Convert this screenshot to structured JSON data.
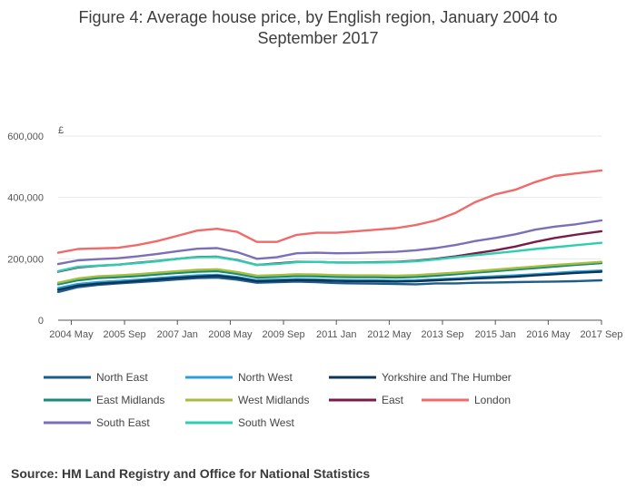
{
  "chart_data": {
    "type": "line",
    "title": "Figure 4: Average house price, by English region, January 2004 to September 2017",
    "ylabel": "£",
    "xlabel": "",
    "ylim": [
      0,
      600000
    ],
    "xlim": [
      2004.0,
      2017.67
    ],
    "grid": true,
    "legend_position": "bottom",
    "y_ticks": [
      {
        "value": 0,
        "label": "0"
      },
      {
        "value": 200000,
        "label": "200,000"
      },
      {
        "value": 400000,
        "label": "400,000"
      },
      {
        "value": 600000,
        "label": "600,000"
      }
    ],
    "x_ticks": [
      {
        "value": 2004.33,
        "label": "2004 May"
      },
      {
        "value": 2005.67,
        "label": "2005 Sep"
      },
      {
        "value": 2007.0,
        "label": "2007 Jan"
      },
      {
        "value": 2008.33,
        "label": "2008 May"
      },
      {
        "value": 2009.67,
        "label": "2009 Sep"
      },
      {
        "value": 2011.0,
        "label": "2011 Jan"
      },
      {
        "value": 2012.33,
        "label": "2012 May"
      },
      {
        "value": 2013.67,
        "label": "2013 Sep"
      },
      {
        "value": 2015.0,
        "label": "2015 Jan"
      },
      {
        "value": 2016.33,
        "label": "2016 May"
      },
      {
        "value": 2017.67,
        "label": "2017 Sep"
      }
    ],
    "x": [
      2004.0,
      2004.5,
      2005.0,
      2005.5,
      2006.0,
      2006.5,
      2007.0,
      2007.5,
      2008.0,
      2008.5,
      2009.0,
      2009.5,
      2010.0,
      2010.5,
      2011.0,
      2011.5,
      2012.0,
      2012.5,
      2013.0,
      2013.5,
      2014.0,
      2014.5,
      2015.0,
      2015.5,
      2016.0,
      2016.5,
      2017.0,
      2017.67
    ],
    "series": [
      {
        "name": "North East",
        "color": "#1f5c8a",
        "values": [
          92000,
          108000,
          115000,
          120000,
          124000,
          128000,
          133000,
          137000,
          139000,
          132000,
          122000,
          124000,
          126000,
          124000,
          121000,
          120000,
          119000,
          118000,
          117000,
          120000,
          120000,
          122000,
          123000,
          124000,
          125000,
          126000,
          127000,
          130000
        ]
      },
      {
        "name": "North West",
        "color": "#2a9fd8",
        "values": [
          105000,
          118000,
          124000,
          128000,
          132000,
          137000,
          142000,
          146000,
          148000,
          141000,
          130000,
          132000,
          134000,
          133000,
          131000,
          130000,
          130000,
          129000,
          130000,
          133000,
          136000,
          140000,
          143000,
          146000,
          150000,
          154000,
          158000,
          162000
        ]
      },
      {
        "name": "Yorkshire and The Humber",
        "color": "#0c3558",
        "values": [
          99000,
          113000,
          119000,
          123000,
          128000,
          133000,
          138000,
          142000,
          145000,
          138000,
          127000,
          129000,
          131000,
          130000,
          128000,
          127000,
          127000,
          126000,
          127000,
          130000,
          133000,
          136000,
          139000,
          142000,
          146000,
          150000,
          154000,
          158000
        ]
      },
      {
        "name": "East Midlands",
        "color": "#178a7a",
        "values": [
          117000,
          130000,
          137000,
          140000,
          144000,
          149000,
          154000,
          158000,
          160000,
          151000,
          139000,
          141000,
          144000,
          143000,
          141000,
          140000,
          140000,
          139000,
          141000,
          145000,
          150000,
          155000,
          160000,
          165000,
          170000,
          175000,
          180000,
          186000
        ]
      },
      {
        "name": "West Midlands",
        "color": "#a6be3c",
        "values": [
          122000,
          136000,
          143000,
          146000,
          150000,
          155000,
          160000,
          164000,
          166000,
          157000,
          145000,
          147000,
          150000,
          149000,
          147000,
          146000,
          146000,
          145000,
          147000,
          151000,
          155000,
          160000,
          165000,
          170000,
          175000,
          180000,
          184000,
          190000
        ]
      },
      {
        "name": "East",
        "color": "#7a1c4a",
        "values": [
          158000,
          172000,
          177000,
          181000,
          187000,
          193000,
          200000,
          206000,
          207000,
          196000,
          180000,
          185000,
          190000,
          190000,
          188000,
          188000,
          189000,
          190000,
          194000,
          200000,
          208000,
          218000,
          228000,
          240000,
          255000,
          268000,
          278000,
          290000
        ]
      },
      {
        "name": "London",
        "color": "#f06a6a",
        "values": [
          220000,
          232000,
          234000,
          236000,
          245000,
          258000,
          275000,
          292000,
          298000,
          288000,
          255000,
          255000,
          278000,
          285000,
          285000,
          290000,
          295000,
          300000,
          310000,
          325000,
          350000,
          385000,
          410000,
          425000,
          450000,
          470000,
          478000,
          488000
        ]
      },
      {
        "name": "South East",
        "color": "#7b6fb6",
        "values": [
          183000,
          195000,
          199000,
          202000,
          208000,
          216000,
          225000,
          233000,
          235000,
          222000,
          200000,
          205000,
          218000,
          220000,
          218000,
          219000,
          221000,
          223000,
          228000,
          235000,
          245000,
          258000,
          268000,
          280000,
          295000,
          305000,
          312000,
          325000
        ]
      },
      {
        "name": "South West",
        "color": "#2dcfb0",
        "values": [
          160000,
          174000,
          178000,
          181000,
          186000,
          192000,
          200000,
          205000,
          206000,
          195000,
          180000,
          183000,
          189000,
          190000,
          188000,
          188000,
          188000,
          189000,
          192000,
          198000,
          205000,
          212000,
          218000,
          225000,
          232000,
          238000,
          244000,
          252000
        ]
      }
    ]
  },
  "source": "Source: HM Land Registry and Office for National Statistics"
}
